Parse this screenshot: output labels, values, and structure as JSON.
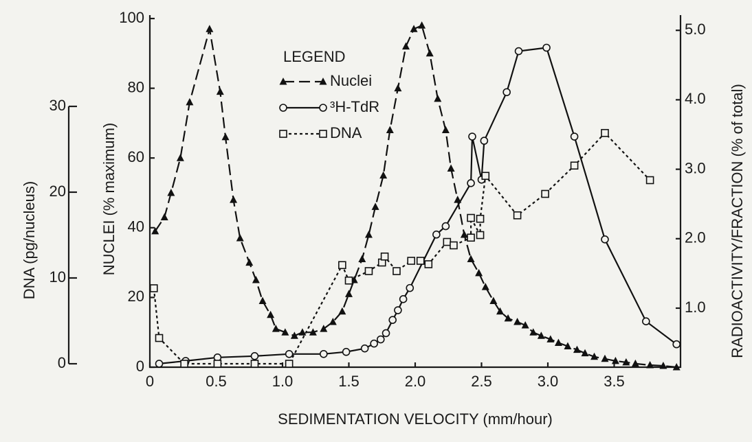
{
  "chart_data": {
    "type": "line",
    "legend_title": "LEGEND",
    "xlabel": "SEDIMENTATION VELOCITY (mm/hour)",
    "ylabel": "NUCLEI (% maximum)",
    "y2label": "RADIOACTIVITY/FRACTION (% of total)",
    "y3label": "DNA (pg/nucleus)",
    "xlim": [
      0,
      4.0
    ],
    "xticks": [
      0,
      0.5,
      {
        "value": 1,
        "label": "1.0"
      },
      1.5,
      {
        "value": 2,
        "label": "2.0"
      },
      2.5,
      {
        "value": 3,
        "label": "3.0"
      },
      3.5
    ],
    "ylim": [
      0,
      100
    ],
    "yticks": [
      0,
      20,
      40,
      60,
      80,
      100
    ],
    "y2lim": [
      0.15,
      5.17
    ],
    "y2ticks": [
      {
        "value": 1,
        "label": "1.0"
      },
      {
        "value": 2,
        "label": "2.0"
      },
      {
        "value": 3,
        "label": "3.0"
      },
      {
        "value": 4,
        "label": "4.0"
      },
      {
        "value": 5,
        "label": "5.0"
      }
    ],
    "y3lim": [
      0,
      30
    ],
    "y3ticks": [
      0,
      10,
      20,
      30
    ],
    "series": [
      {
        "name": "Nuclei",
        "color": "#111111",
        "marker": "triangle",
        "dash": "dashed",
        "axis": "y",
        "x": [
          0.04,
          0.11,
          0.16,
          0.23,
          0.3,
          0.45,
          0.53,
          0.57,
          0.63,
          0.68,
          0.75,
          0.8,
          0.85,
          0.91,
          0.95,
          1.02,
          1.09,
          1.15,
          1.23,
          1.31,
          1.38,
          1.45,
          1.5,
          1.54,
          1.6,
          1.65,
          1.7,
          1.76,
          1.81,
          1.87,
          1.93,
          1.99,
          2.05,
          2.11,
          2.17,
          2.23,
          2.27,
          2.32,
          2.37,
          2.42,
          2.48,
          2.53,
          2.59,
          2.64,
          2.7,
          2.77,
          2.83,
          2.89,
          2.95,
          3.02,
          3.08,
          3.15,
          3.22,
          3.28,
          3.35,
          3.43,
          3.51,
          3.59,
          3.66,
          3.77,
          3.87,
          3.97
        ],
        "values": [
          39,
          43,
          50,
          60,
          76,
          97,
          79,
          66,
          48,
          37,
          30,
          25,
          19,
          15,
          11,
          10,
          9,
          10,
          10,
          11,
          13,
          16,
          21,
          25,
          31,
          38,
          46,
          55,
          68,
          80,
          92,
          97,
          98,
          90,
          77,
          68,
          57,
          48,
          38,
          31,
          27,
          23,
          19,
          16,
          14,
          13,
          12,
          10,
          9,
          8,
          7,
          6,
          5,
          4,
          3,
          2.4,
          1.8,
          1.4,
          1,
          0.6,
          0.4,
          0
        ]
      },
      {
        "name": "³H-TdR",
        "color": "#111111",
        "marker": "circle",
        "dash": "solid",
        "axis": "y2",
        "x": [
          0.07,
          0.27,
          0.51,
          0.79,
          1.05,
          1.31,
          1.48,
          1.62,
          1.69,
          1.74,
          1.78,
          1.83,
          1.87,
          1.91,
          1.96,
          2.16,
          2.23,
          2.42,
          2.43,
          2.5,
          2.52,
          2.69,
          2.78,
          2.99,
          3.2,
          3.43,
          3.74,
          3.97
        ],
        "values": [
          0.2,
          0.24,
          0.29,
          0.31,
          0.34,
          0.34,
          0.37,
          0.42,
          0.49,
          0.55,
          0.64,
          0.83,
          0.97,
          1.13,
          1.29,
          2.06,
          2.18,
          2.8,
          3.47,
          2.85,
          3.41,
          4.11,
          4.7,
          4.75,
          3.47,
          1.99,
          0.81,
          0.48
        ]
      },
      {
        "name": "DNA",
        "color": "#111111",
        "marker": "square",
        "dash": "dotted",
        "axis": "y3",
        "x": [
          0.03,
          0.07,
          0.26,
          0.51,
          0.79,
          1.05,
          1.45,
          1.5,
          1.65,
          1.75,
          1.77,
          1.86,
          1.97,
          2.04,
          2.1,
          2.24,
          2.29,
          2.42,
          2.42,
          2.49,
          2.49,
          2.53,
          2.77,
          2.98,
          3.2,
          3.43,
          3.77
        ],
        "values": [
          8.8,
          3.0,
          0,
          0,
          0,
          0,
          11.5,
          9.7,
          10.8,
          11.8,
          12.5,
          10.8,
          12.0,
          12.0,
          11.6,
          14.2,
          13.8,
          14.7,
          17.0,
          15.0,
          16.9,
          21.9,
          17.3,
          19.8,
          23.1,
          26.9,
          21.4
        ]
      }
    ]
  }
}
